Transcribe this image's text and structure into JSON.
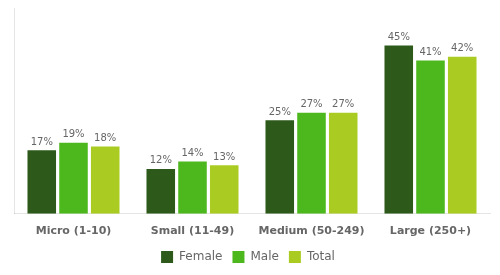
{
  "chart_data": {
    "type": "bar",
    "categories": [
      "Micro (1-10)",
      "Small (11-49)",
      "Medium (50-249)",
      "Large (250+)"
    ],
    "series": [
      {
        "name": "Female",
        "color": "#2d5a1b",
        "values": [
          17,
          12,
          25,
          45
        ],
        "value_labels": [
          "17%",
          "12%",
          "25%",
          "45%"
        ]
      },
      {
        "name": "Male",
        "color": "#4cb81e",
        "values": [
          19,
          14,
          27,
          41
        ],
        "value_labels": [
          "19%",
          "14%",
          "27%",
          "41%"
        ]
      },
      {
        "name": "Total",
        "color": "#aacc22",
        "values": [
          18,
          13,
          27,
          42
        ],
        "value_labels": [
          "18%",
          "13%",
          "27%",
          "42%"
        ]
      }
    ],
    "ylim": [
      0,
      55
    ],
    "grid": false,
    "legend": "bottom",
    "data_labels": true,
    "tick_labels": "x"
  }
}
